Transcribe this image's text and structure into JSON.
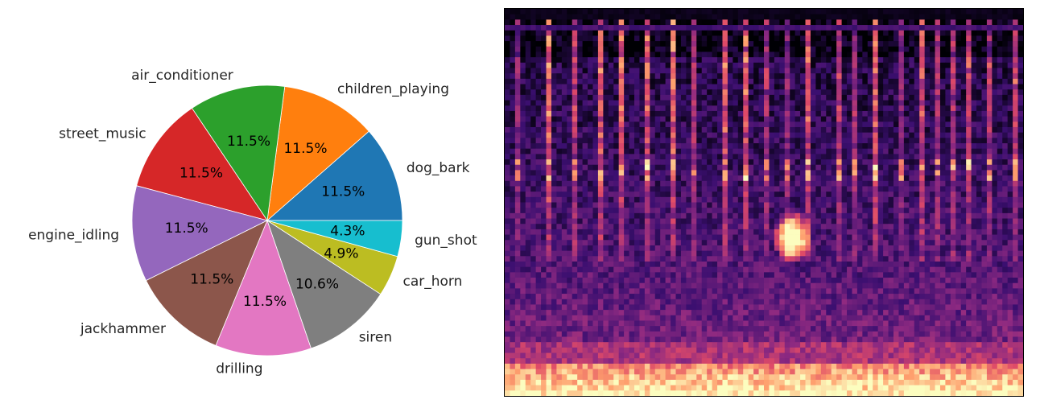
{
  "chart_data": [
    {
      "type": "pie",
      "title": "",
      "start_angle_deg": 0,
      "direction": "counterclockwise",
      "autopct_format": "%.1f%%",
      "slices": [
        {
          "label": "dog_bark",
          "pct_label": "11.5%",
          "value": 11.5,
          "color": "#1f77b4"
        },
        {
          "label": "children_playing",
          "pct_label": "11.5%",
          "value": 11.5,
          "color": "#ff7f0e"
        },
        {
          "label": "air_conditioner",
          "pct_label": "11.5%",
          "value": 11.5,
          "color": "#2ca02c"
        },
        {
          "label": "street_music",
          "pct_label": "11.5%",
          "value": 11.5,
          "color": "#d62728"
        },
        {
          "label": "engine_idling",
          "pct_label": "11.5%",
          "value": 11.5,
          "color": "#9467bd"
        },
        {
          "label": "jackhammer",
          "pct_label": "11.5%",
          "value": 11.5,
          "color": "#8c564b"
        },
        {
          "label": "drilling",
          "pct_label": "11.5%",
          "value": 11.5,
          "color": "#e377c2"
        },
        {
          "label": "siren",
          "pct_label": "10.6%",
          "value": 10.6,
          "color": "#7f7f7f"
        },
        {
          "label": "car_horn",
          "pct_label": "4.9%",
          "value": 4.9,
          "color": "#bcbd22"
        },
        {
          "label": "gun_shot",
          "pct_label": "4.3%",
          "value": 4.3,
          "color": "#17becf"
        }
      ]
    },
    {
      "type": "heatmap",
      "title": "",
      "xlabel": "",
      "ylabel": "",
      "axes_ticks": false,
      "colormap": "magma",
      "colormap_stops": [
        "#000004",
        "#3b0f70",
        "#8c2981",
        "#de4968",
        "#fe9f6d",
        "#fcfdbf"
      ],
      "description_of_values": "mel spectrogram intensity; brightest at lowest frequency band, vertical onset streaks near top, a bright burst near the middle",
      "grid_cols": 100,
      "grid_rows": 72
    }
  ]
}
